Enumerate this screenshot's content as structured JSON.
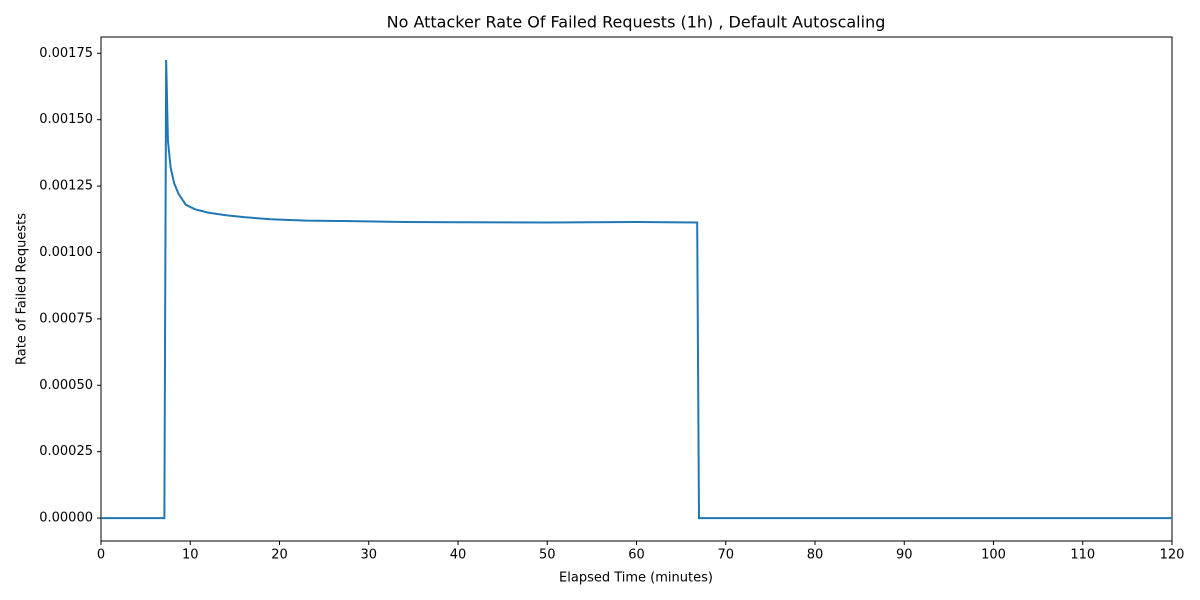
{
  "chart_data": {
    "type": "line",
    "title": "No Attacker Rate Of Failed Requests (1h) , Default Autoscaling",
    "x_label": "Elapsed Time (minutes)",
    "y_label": "Rate of Failed Requests",
    "x": [
      0,
      2,
      4,
      6,
      7.1,
      7.3,
      7.5,
      7.8,
      8.2,
      8.7,
      9.5,
      10.5,
      12,
      14,
      16,
      19,
      23,
      28,
      34,
      40,
      50,
      60,
      66.8,
      67.0,
      70,
      80,
      90,
      100,
      110,
      120
    ],
    "values": [
      0,
      0,
      0,
      0,
      0,
      0.001725,
      0.00142,
      0.00132,
      0.00126,
      0.00122,
      0.00118,
      0.001163,
      0.00115,
      0.00114,
      0.001133,
      0.001125,
      0.00112,
      0.001118,
      0.001115,
      0.001114,
      0.001113,
      0.001115,
      0.001113,
      0,
      0,
      0,
      0,
      0,
      0,
      0
    ],
    "color": "#1f77b4",
    "xlim": [
      0,
      120
    ],
    "ylim": [
      -8.63e-05,
      0.0018113
    ],
    "xticks": [
      0,
      10,
      20,
      30,
      40,
      50,
      60,
      70,
      80,
      90,
      100,
      110,
      120
    ],
    "yticks": [
      {
        "value": 0,
        "label": "0.00000"
      },
      0.00025,
      {
        "value": 0.0005,
        "label": "0.00050"
      },
      0.00075,
      {
        "value": 0.001,
        "label": "0.00100"
      },
      0.00125,
      {
        "value": 0.0015,
        "label": "0.00150"
      },
      0.00175
    ]
  }
}
